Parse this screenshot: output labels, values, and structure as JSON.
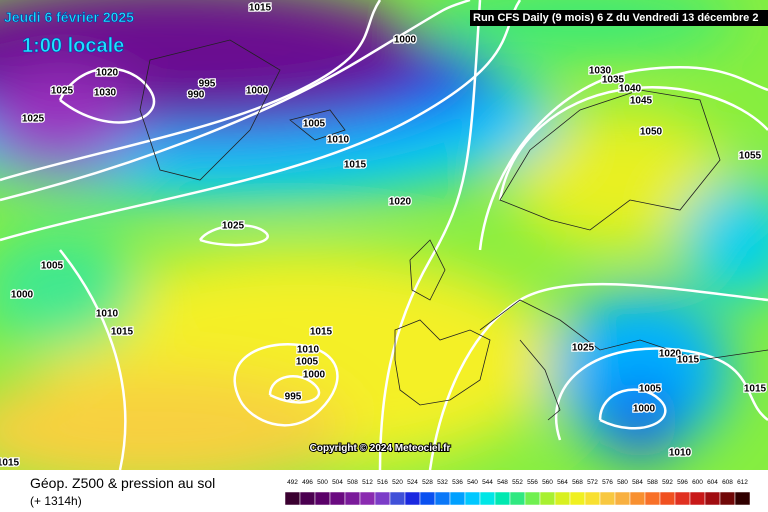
{
  "header": {
    "date": "Jeudi 6 février 2025",
    "time": "1:00 locale",
    "run": "Run CFS Daily (9 mois) 6 Z du Vendredi 13 décembre 2"
  },
  "isobar_labels": [
    "1015",
    "1000",
    "1020",
    "1025",
    "1030",
    "995",
    "990",
    "1000",
    "1025",
    "1005",
    "1010",
    "1015",
    "1020",
    "1025",
    "1005",
    "1000",
    "1010",
    "1015",
    "1015",
    "1010",
    "1005",
    "1000",
    "995",
    "1030",
    "1035",
    "1040",
    "1045",
    "1050",
    "1055",
    "1025",
    "1020",
    "1015",
    "1005",
    "1000",
    "1015",
    "1010",
    "1015"
  ],
  "copyright": "Copyright © 2024 Meteociel.fr",
  "footer": {
    "title": "Géop. Z500 & pression au sol",
    "lead": "(+ 1314h)"
  },
  "scale": {
    "labels": [
      492,
      496,
      500,
      504,
      508,
      512,
      516,
      520,
      524,
      528,
      532,
      536,
      540,
      544,
      548,
      552,
      556,
      560,
      564,
      568,
      572,
      576,
      580,
      584,
      588,
      592,
      596,
      600,
      604,
      608,
      612
    ],
    "colors": [
      "#3a0030",
      "#4b0050",
      "#5a0068",
      "#6a0a80",
      "#7a1a9a",
      "#8a2ab0",
      "#7b3cc8",
      "#4050d8",
      "#1a28e0",
      "#0a50f0",
      "#0a78f8",
      "#00a0ff",
      "#00c8ff",
      "#00e6e6",
      "#00e8b0",
      "#30e880",
      "#70f050",
      "#a8f030",
      "#d8f020",
      "#f0f020",
      "#f8e030",
      "#f8c840",
      "#f8b040",
      "#f89030",
      "#f87028",
      "#f05020",
      "#e03020",
      "#c81818",
      "#a00c10",
      "#700808",
      "#300000"
    ]
  }
}
